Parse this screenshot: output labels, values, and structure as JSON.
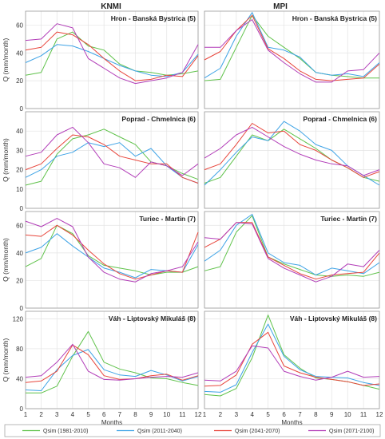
{
  "columns": [
    "KNMI",
    "MPI"
  ],
  "chart_data": [
    {
      "type": "line",
      "title": "Hron - Banská Bystrica  (5)",
      "column": "KNMI",
      "x": [
        1,
        2,
        3,
        4,
        5,
        6,
        7,
        8,
        9,
        10,
        11,
        12
      ],
      "xlabel": "",
      "ylabel": "Q (mm/month)",
      "ylim": [
        0,
        70
      ],
      "yticks": [
        0,
        20,
        40,
        60
      ],
      "series": [
        {
          "name": "Qsim (1981-2010)",
          "values": [
            24,
            26,
            50,
            55,
            45,
            42,
            32,
            27,
            26,
            24,
            25,
            27
          ]
        },
        {
          "name": "Qsim (2011-2040)",
          "values": [
            33,
            38,
            46,
            45,
            41,
            36,
            31,
            27,
            24,
            23,
            26,
            39
          ]
        },
        {
          "name": "Qsim (2041-2070)",
          "values": [
            42,
            44,
            55,
            53,
            46,
            36,
            27,
            20,
            21,
            24,
            23,
            38
          ]
        },
        {
          "name": "Qsim (2071-2100)",
          "values": [
            49,
            50,
            61,
            58,
            36,
            29,
            22,
            18,
            20,
            22,
            26,
            46
          ]
        }
      ]
    },
    {
      "type": "line",
      "title": "Hron - Banská Bystrica  (5)",
      "column": "MPI",
      "x": [
        1,
        2,
        3,
        4,
        5,
        6,
        7,
        8,
        9,
        10,
        11,
        12
      ],
      "xlabel": "",
      "ylabel": "",
      "ylim": [
        0,
        70
      ],
      "yticks": [
        0,
        20,
        40,
        60
      ],
      "series": [
        {
          "name": "Qsim (1981-2010)",
          "values": [
            20,
            21,
            44,
            67,
            52,
            44,
            36,
            26,
            24,
            23,
            22,
            22
          ]
        },
        {
          "name": "Qsim (2011-2040)",
          "values": [
            22,
            29,
            52,
            69,
            44,
            42,
            37,
            26,
            24,
            25,
            23,
            33
          ]
        },
        {
          "name": "Qsim (2041-2070)",
          "values": [
            35,
            41,
            56,
            67,
            43,
            36,
            27,
            21,
            20,
            21,
            22,
            32
          ]
        },
        {
          "name": "Qsim (2071-2100)",
          "values": [
            44,
            44,
            56,
            64,
            42,
            33,
            25,
            19,
            19,
            27,
            28,
            40
          ]
        }
      ]
    },
    {
      "type": "line",
      "title": "Poprad - Chmelnica  (6)",
      "column": "KNMI",
      "x": [
        1,
        2,
        3,
        4,
        5,
        6,
        7,
        8,
        9,
        10,
        11,
        12
      ],
      "xlabel": "",
      "ylabel": "Q (mm/month)",
      "ylim": [
        0,
        50
      ],
      "yticks": [
        0,
        10,
        20,
        30,
        40
      ],
      "series": [
        {
          "name": "Qsim (1981-2010)",
          "values": [
            12,
            14,
            28,
            36,
            38,
            41,
            37,
            33,
            24,
            22,
            18,
            15
          ]
        },
        {
          "name": "Qsim (2011-2040)",
          "values": [
            16,
            20,
            27,
            29,
            34,
            32,
            34,
            27,
            31,
            22,
            16,
            13
          ]
        },
        {
          "name": "Qsim (2041-2070)",
          "values": [
            20,
            23,
            31,
            38,
            37,
            33,
            27,
            25,
            23,
            23,
            16,
            13
          ]
        },
        {
          "name": "Qsim (2071-2100)",
          "values": [
            27,
            29,
            38,
            42,
            34,
            23,
            21,
            16,
            24,
            22,
            17,
            23
          ]
        }
      ]
    },
    {
      "type": "line",
      "title": "Poprad - Chmelnica  (6)",
      "column": "MPI",
      "x": [
        1,
        2,
        3,
        4,
        5,
        6,
        7,
        8,
        9,
        10,
        11,
        12
      ],
      "xlabel": "",
      "ylabel": "",
      "ylim": [
        0,
        50
      ],
      "yticks": [
        0,
        10,
        20,
        30,
        40
      ],
      "series": [
        {
          "name": "Qsim (1981-2010)",
          "values": [
            13,
            16,
            27,
            38,
            35,
            41,
            36,
            31,
            25,
            21,
            16,
            14
          ]
        },
        {
          "name": "Qsim (2011-2040)",
          "values": [
            12,
            20,
            29,
            37,
            35,
            45,
            40,
            33,
            30,
            22,
            17,
            12
          ]
        },
        {
          "name": "Qsim (2041-2070)",
          "values": [
            20,
            23,
            33,
            44,
            39,
            40,
            33,
            30,
            25,
            21,
            16,
            19
          ]
        },
        {
          "name": "Qsim (2071-2100)",
          "values": [
            26,
            31,
            38,
            42,
            37,
            32,
            28,
            25,
            23,
            22,
            17,
            20
          ]
        }
      ]
    },
    {
      "type": "line",
      "title": "Turiec - Martin  (7)",
      "column": "KNMI",
      "x": [
        1,
        2,
        3,
        4,
        5,
        6,
        7,
        8,
        9,
        10,
        11,
        12
      ],
      "xlabel": "",
      "ylabel": "Q (mm/month)",
      "ylim": [
        0,
        70
      ],
      "yticks": [
        0,
        20,
        40,
        60
      ],
      "series": [
        {
          "name": "Qsim (1981-2010)",
          "values": [
            30,
            36,
            60,
            54,
            38,
            31,
            29,
            27,
            24,
            26,
            26,
            30
          ]
        },
        {
          "name": "Qsim (2011-2040)",
          "values": [
            40,
            44,
            54,
            45,
            37,
            29,
            26,
            22,
            28,
            27,
            26,
            46
          ]
        },
        {
          "name": "Qsim (2041-2070)",
          "values": [
            53,
            52,
            60,
            53,
            42,
            32,
            25,
            21,
            24,
            27,
            26,
            55
          ]
        },
        {
          "name": "Qsim (2071-2100)",
          "values": [
            63,
            59,
            65,
            59,
            37,
            26,
            21,
            19,
            25,
            27,
            30,
            48
          ]
        }
      ]
    },
    {
      "type": "line",
      "title": "Turiec - Martin  (7)",
      "column": "MPI",
      "x": [
        1,
        2,
        3,
        4,
        5,
        6,
        7,
        8,
        9,
        10,
        11,
        12
      ],
      "xlabel": "",
      "ylabel": "",
      "ylim": [
        0,
        70
      ],
      "yticks": [
        0,
        20,
        40,
        60
      ],
      "series": [
        {
          "name": "Qsim (1981-2010)",
          "values": [
            27,
            30,
            55,
            67,
            37,
            32,
            28,
            24,
            23,
            24,
            23,
            26
          ]
        },
        {
          "name": "Qsim (2011-2040)",
          "values": [
            34,
            42,
            60,
            68,
            40,
            33,
            31,
            24,
            29,
            27,
            25,
            33
          ]
        },
        {
          "name": "Qsim (2041-2070)",
          "values": [
            44,
            50,
            62,
            62,
            37,
            31,
            25,
            21,
            24,
            25,
            26,
            40
          ]
        },
        {
          "name": "Qsim (2071-2100)",
          "values": [
            51,
            50,
            62,
            61,
            36,
            29,
            24,
            19,
            23,
            32,
            30,
            42
          ]
        }
      ]
    },
    {
      "type": "line",
      "title": "Váh - Liptovský Mikuláš  (8)",
      "column": "KNMI",
      "x": [
        1,
        2,
        3,
        4,
        5,
        6,
        7,
        8,
        9,
        10,
        11,
        12
      ],
      "xlabel": "Months",
      "ylabel": "Q (mm/month)",
      "ylim": [
        0,
        130
      ],
      "yticks": [
        0,
        40,
        80,
        120
      ],
      "series": [
        {
          "name": "Qsim (1981-2010)",
          "values": [
            21,
            21,
            30,
            70,
            103,
            62,
            53,
            48,
            41,
            40,
            35,
            31
          ]
        },
        {
          "name": "Qsim (2011-2040)",
          "values": [
            25,
            24,
            52,
            71,
            79,
            52,
            45,
            43,
            51,
            45,
            37,
            43
          ]
        },
        {
          "name": "Qsim (2041-2070)",
          "values": [
            35,
            37,
            50,
            85,
            72,
            44,
            39,
            40,
            44,
            46,
            38,
            44
          ]
        },
        {
          "name": "Qsim (2071-2100)",
          "values": [
            42,
            44,
            62,
            86,
            50,
            39,
            38,
            40,
            42,
            43,
            42,
            48
          ]
        }
      ]
    },
    {
      "type": "line",
      "title": "Váh - Liptovský Mikuláš  (8)",
      "column": "MPI",
      "x": [
        1,
        2,
        3,
        4,
        5,
        6,
        7,
        8,
        9,
        10,
        11,
        12
      ],
      "xlabel": "Months",
      "ylabel": "",
      "ylim": [
        0,
        130
      ],
      "yticks": [
        0,
        40,
        80,
        120
      ],
      "series": [
        {
          "name": "Qsim (1981-2010)",
          "values": [
            19,
            17,
            27,
            68,
            125,
            72,
            54,
            41,
            39,
            36,
            31,
            26
          ]
        },
        {
          "name": "Qsim (2011-2040)",
          "values": [
            23,
            22,
            32,
            75,
            113,
            70,
            52,
            43,
            42,
            41,
            35,
            31
          ]
        },
        {
          "name": "Qsim (2041-2070)",
          "values": [
            30,
            31,
            45,
            86,
            102,
            57,
            48,
            42,
            39,
            36,
            31,
            33
          ]
        },
        {
          "name": "Qsim (2071-2100)",
          "values": [
            38,
            37,
            50,
            84,
            81,
            50,
            43,
            38,
            42,
            50,
            42,
            43
          ]
        }
      ]
    }
  ],
  "legend": [
    {
      "label": "Qsim (1981-2010)",
      "color": "#5fc24a"
    },
    {
      "label": "Qsim (2011-2040)",
      "color": "#3ea3e6"
    },
    {
      "label": "Qsim (2041-2070)",
      "color": "#e8463c"
    },
    {
      "label": "Qsim (2071-2100)",
      "color": "#b23db8"
    }
  ]
}
